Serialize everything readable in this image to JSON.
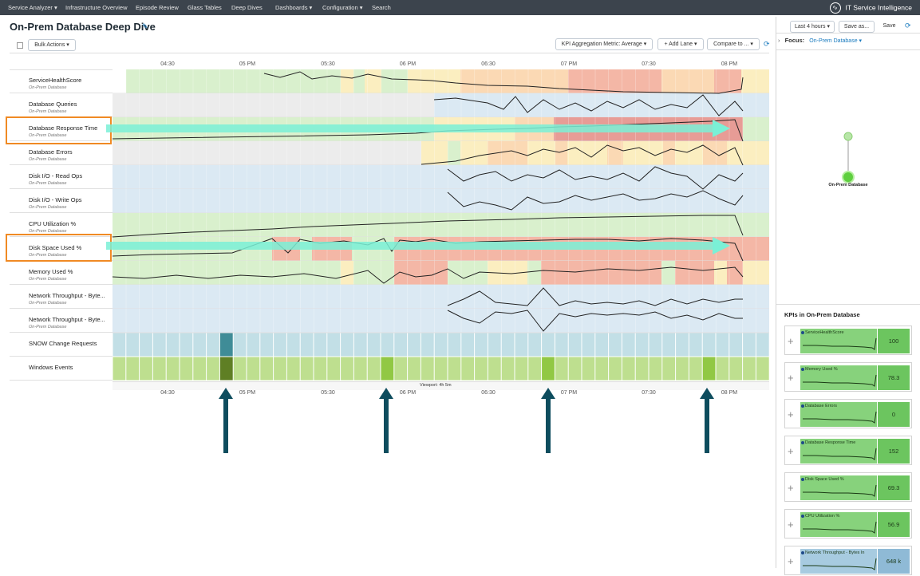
{
  "nav": {
    "items": [
      "Service Analyzer ▾",
      "Infrastructure Overview",
      "Episode Review",
      "Glass Tables",
      "Deep Dives",
      "Dashboards ▾",
      "Configuration ▾",
      "Search"
    ],
    "brand": "IT Service Intelligence"
  },
  "page": {
    "title": "On-Prem Database Deep Dive",
    "time_range": "Last 4 hours ▾",
    "save_as": "Save as...",
    "save": "Save",
    "bulk_actions": "Bulk Actions ▾",
    "kpi_agg": "KPI Aggregation Metric: Average ▾",
    "add_lane": "+ Add Lane ▾",
    "compare": "Compare to ... ▾",
    "viewport": "Viewport: 4h 5m"
  },
  "axis": {
    "ticks": [
      "04:30",
      "05 PM",
      "05:30",
      "06 PM",
      "06:30",
      "07 PM",
      "07:30",
      "08 PM"
    ]
  },
  "lanes": [
    {
      "name": "ServiceHealthScore",
      "sub": "On-Prem Database"
    },
    {
      "name": "Database Queries",
      "sub": "On-Prem Database"
    },
    {
      "name": "Database Response Time",
      "sub": "On-Prem Database"
    },
    {
      "name": "Database Errors",
      "sub": "On-Prem Database"
    },
    {
      "name": "Disk I/O - Read Ops",
      "sub": "On-Prem Database"
    },
    {
      "name": "Disk I/O - Write Ops",
      "sub": "On-Prem Database"
    },
    {
      "name": "CPU Utilization %",
      "sub": "On-Prem Database"
    },
    {
      "name": "Disk Space Used %",
      "sub": "On-Prem Database"
    },
    {
      "name": "Memory Used %",
      "sub": "On-Prem Database"
    },
    {
      "name": "Network Throughput - Byte...",
      "sub": "On-Prem Database"
    },
    {
      "name": "Network Throughput - Byte...",
      "sub": "On-Prem Database"
    },
    {
      "name": "SNOW Change Requests",
      "sub": ""
    },
    {
      "name": "Windows Events",
      "sub": ""
    }
  ],
  "focus": {
    "label": "Focus:",
    "value": "On-Prem Database ▾",
    "node": "On-Prem Database",
    "kpis_title": "KPIs in On-Prem Database"
  },
  "kpi_cards": [
    {
      "name": "ServiceHealthScore",
      "value": "100"
    },
    {
      "name": "Memory Used %",
      "value": "78.3"
    },
    {
      "name": "Database Errors",
      "value": "0"
    },
    {
      "name": "Database Response Time",
      "value": "152"
    },
    {
      "name": "Disk Space Used %",
      "value": "69.3"
    },
    {
      "name": "CPU Utilization %",
      "value": "56.9"
    },
    {
      "name": "Network Throughput - Bytes In",
      "value": "648 k"
    }
  ]
}
